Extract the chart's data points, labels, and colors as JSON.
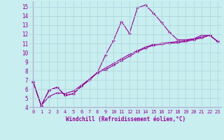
{
  "xlabel": "Windchill (Refroidissement éolien,°C)",
  "background_color": "#c8eef0",
  "grid_color": "#b0d8dc",
  "line_color": "#990099",
  "xlim": [
    -0.5,
    23.5
  ],
  "ylim": [
    3.8,
    15.6
  ],
  "xticks": [
    0,
    1,
    2,
    3,
    4,
    5,
    6,
    7,
    8,
    9,
    10,
    11,
    12,
    13,
    14,
    15,
    16,
    17,
    18,
    19,
    20,
    21,
    22,
    23
  ],
  "yticks": [
    4,
    5,
    6,
    7,
    8,
    9,
    10,
    11,
    12,
    13,
    14,
    15
  ],
  "line1_x": [
    0,
    1,
    2,
    3,
    4,
    5,
    6,
    7,
    8,
    9,
    10,
    11,
    12,
    13,
    14,
    15,
    16,
    17,
    18,
    19,
    20,
    21,
    22,
    23
  ],
  "line1_y": [
    6.8,
    4.2,
    5.9,
    6.2,
    5.3,
    5.5,
    6.3,
    7.0,
    7.8,
    9.7,
    11.3,
    13.4,
    12.1,
    14.9,
    15.2,
    14.3,
    13.3,
    12.2,
    11.4,
    11.4,
    11.5,
    11.9,
    11.9,
    11.2
  ],
  "line2_x": [
    0,
    1,
    2,
    3,
    4,
    5,
    6,
    7,
    8,
    9,
    10,
    11,
    12,
    13,
    14,
    15,
    16,
    17,
    18,
    19,
    20,
    21,
    22,
    23
  ],
  "line2_y": [
    6.8,
    4.2,
    5.9,
    6.2,
    5.3,
    5.5,
    6.3,
    7.0,
    7.8,
    8.1,
    8.6,
    9.1,
    9.6,
    10.1,
    10.5,
    10.8,
    10.9,
    11.0,
    11.1,
    11.2,
    11.4,
    11.6,
    11.9,
    11.2
  ],
  "line3_x": [
    0,
    1,
    2,
    3,
    4,
    5,
    6,
    7,
    8,
    9,
    10,
    11,
    12,
    13,
    14,
    15,
    16,
    17,
    18,
    19,
    20,
    21,
    22,
    23
  ],
  "line3_y": [
    6.8,
    4.2,
    5.2,
    5.6,
    5.5,
    5.8,
    6.4,
    7.1,
    7.8,
    8.3,
    8.8,
    9.3,
    9.8,
    10.2,
    10.6,
    10.9,
    11.0,
    11.1,
    11.2,
    11.3,
    11.5,
    11.7,
    11.9,
    11.2
  ]
}
